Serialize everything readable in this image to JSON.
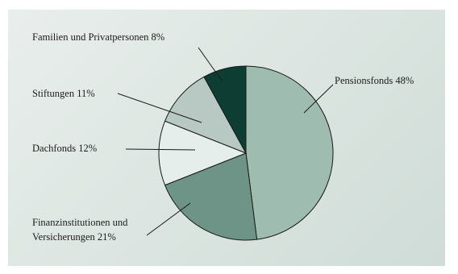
{
  "chart_data": {
    "type": "pie",
    "slices": [
      {
        "label": "Pensionsfonds",
        "value": 48,
        "text": "Pensionsfonds 48%",
        "color": "#9fbcb1"
      },
      {
        "label": "Finanzinstitutionen und Versicherungen",
        "value": 21,
        "text_lines": [
          "Finanzinstitutionen und",
          "Versicherungen 21%"
        ],
        "color": "#6e9387"
      },
      {
        "label": "Dachfonds",
        "value": 12,
        "text": "Dachfonds 12%",
        "color": "#e6eeeb"
      },
      {
        "label": "Stiftungen",
        "value": 11,
        "text": "Stiftungen 11%",
        "color": "#b8c9c3"
      },
      {
        "label": "Familien und Privatpersonen",
        "value": 8,
        "text": "Familien und Privatpersonen 8%",
        "color": "#0d3d33"
      }
    ],
    "start": "12 o'clock",
    "direction": "clockwise"
  }
}
